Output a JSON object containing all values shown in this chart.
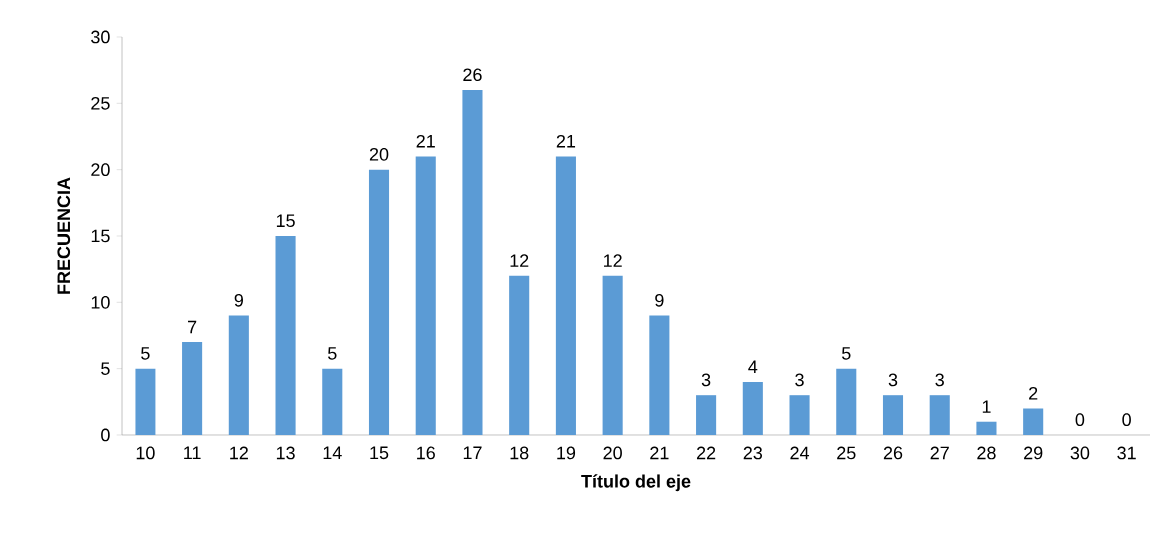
{
  "chart_data": {
    "type": "bar",
    "xlabel": "Título del eje",
    "ylabel": "FRECUENCIA",
    "categories": [
      "10",
      "11",
      "12",
      "13",
      "14",
      "15",
      "16",
      "17",
      "18",
      "19",
      "20",
      "21",
      "22",
      "23",
      "24",
      "25",
      "26",
      "27",
      "28",
      "29",
      "30",
      "31"
    ],
    "values": [
      5,
      7,
      9,
      15,
      5,
      20,
      21,
      26,
      12,
      21,
      12,
      9,
      3,
      4,
      3,
      5,
      3,
      3,
      1,
      2,
      0,
      0
    ],
    "color": "#5b9bd5",
    "ylim": [
      0,
      30
    ],
    "yticks": [
      0,
      5,
      10,
      15,
      20,
      25,
      30
    ],
    "data_labels": true
  }
}
